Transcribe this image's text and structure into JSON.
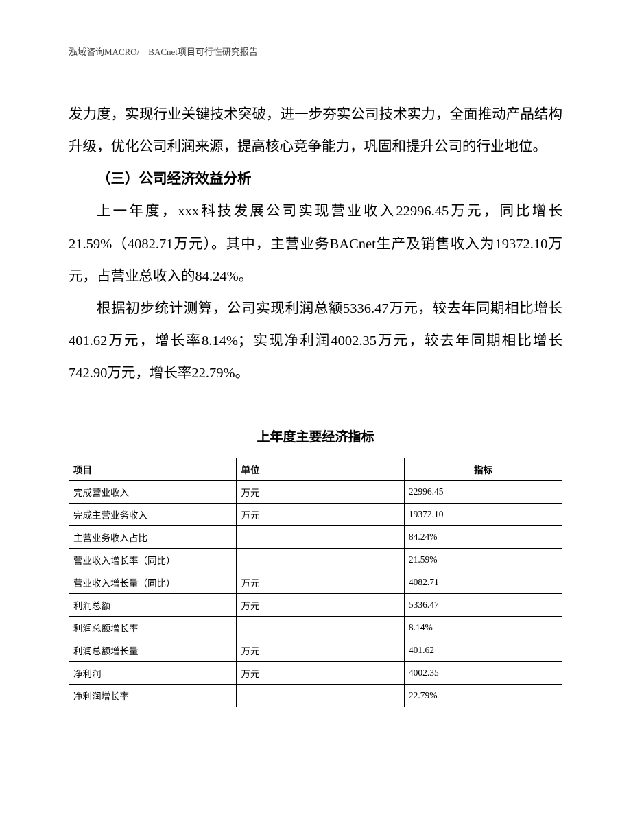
{
  "header": {
    "text": "泓域咨询MACRO/　BACnet项目可行性研究报告"
  },
  "paragraph1": "发力度，实现行业关键技术突破，进一步夯实公司技术实力，全面推动产品结构升级，优化公司利润来源，提高核心竞争能力，巩固和提升公司的行业地位。",
  "heading": "（三）公司经济效益分析",
  "paragraph2": "上一年度，xxx科技发展公司实现营业收入22996.45万元，同比增长21.59%（4082.71万元）。其中，主营业务BACnet生产及销售收入为19372.10万元，占营业总收入的84.24%。",
  "paragraph3": "根据初步统计测算，公司实现利润总额5336.47万元，较去年同期相比增长401.62万元，增长率8.14%；实现净利润4002.35万元，较去年同期相比增长742.90万元，增长率22.79%。",
  "table": {
    "title": "上年度主要经济指标",
    "columns": {
      "item": "项目",
      "unit": "单位",
      "indicator": "指标"
    },
    "rows": [
      {
        "item": "完成营业收入",
        "unit": "万元",
        "indicator": "22996.45"
      },
      {
        "item": "完成主营业务收入",
        "unit": "万元",
        "indicator": "19372.10"
      },
      {
        "item": "主营业务收入占比",
        "unit": "",
        "indicator": "84.24%"
      },
      {
        "item": "营业收入增长率（同比）",
        "unit": "",
        "indicator": "21.59%"
      },
      {
        "item": "营业收入增长量（同比）",
        "unit": "万元",
        "indicator": "4082.71"
      },
      {
        "item": "利润总额",
        "unit": "万元",
        "indicator": "5336.47"
      },
      {
        "item": "利润总额增长率",
        "unit": "",
        "indicator": "8.14%"
      },
      {
        "item": "利润总额增长量",
        "unit": "万元",
        "indicator": "401.62"
      },
      {
        "item": "净利润",
        "unit": "万元",
        "indicator": "4002.35"
      },
      {
        "item": "净利润增长率",
        "unit": "",
        "indicator": "22.79%"
      }
    ]
  }
}
